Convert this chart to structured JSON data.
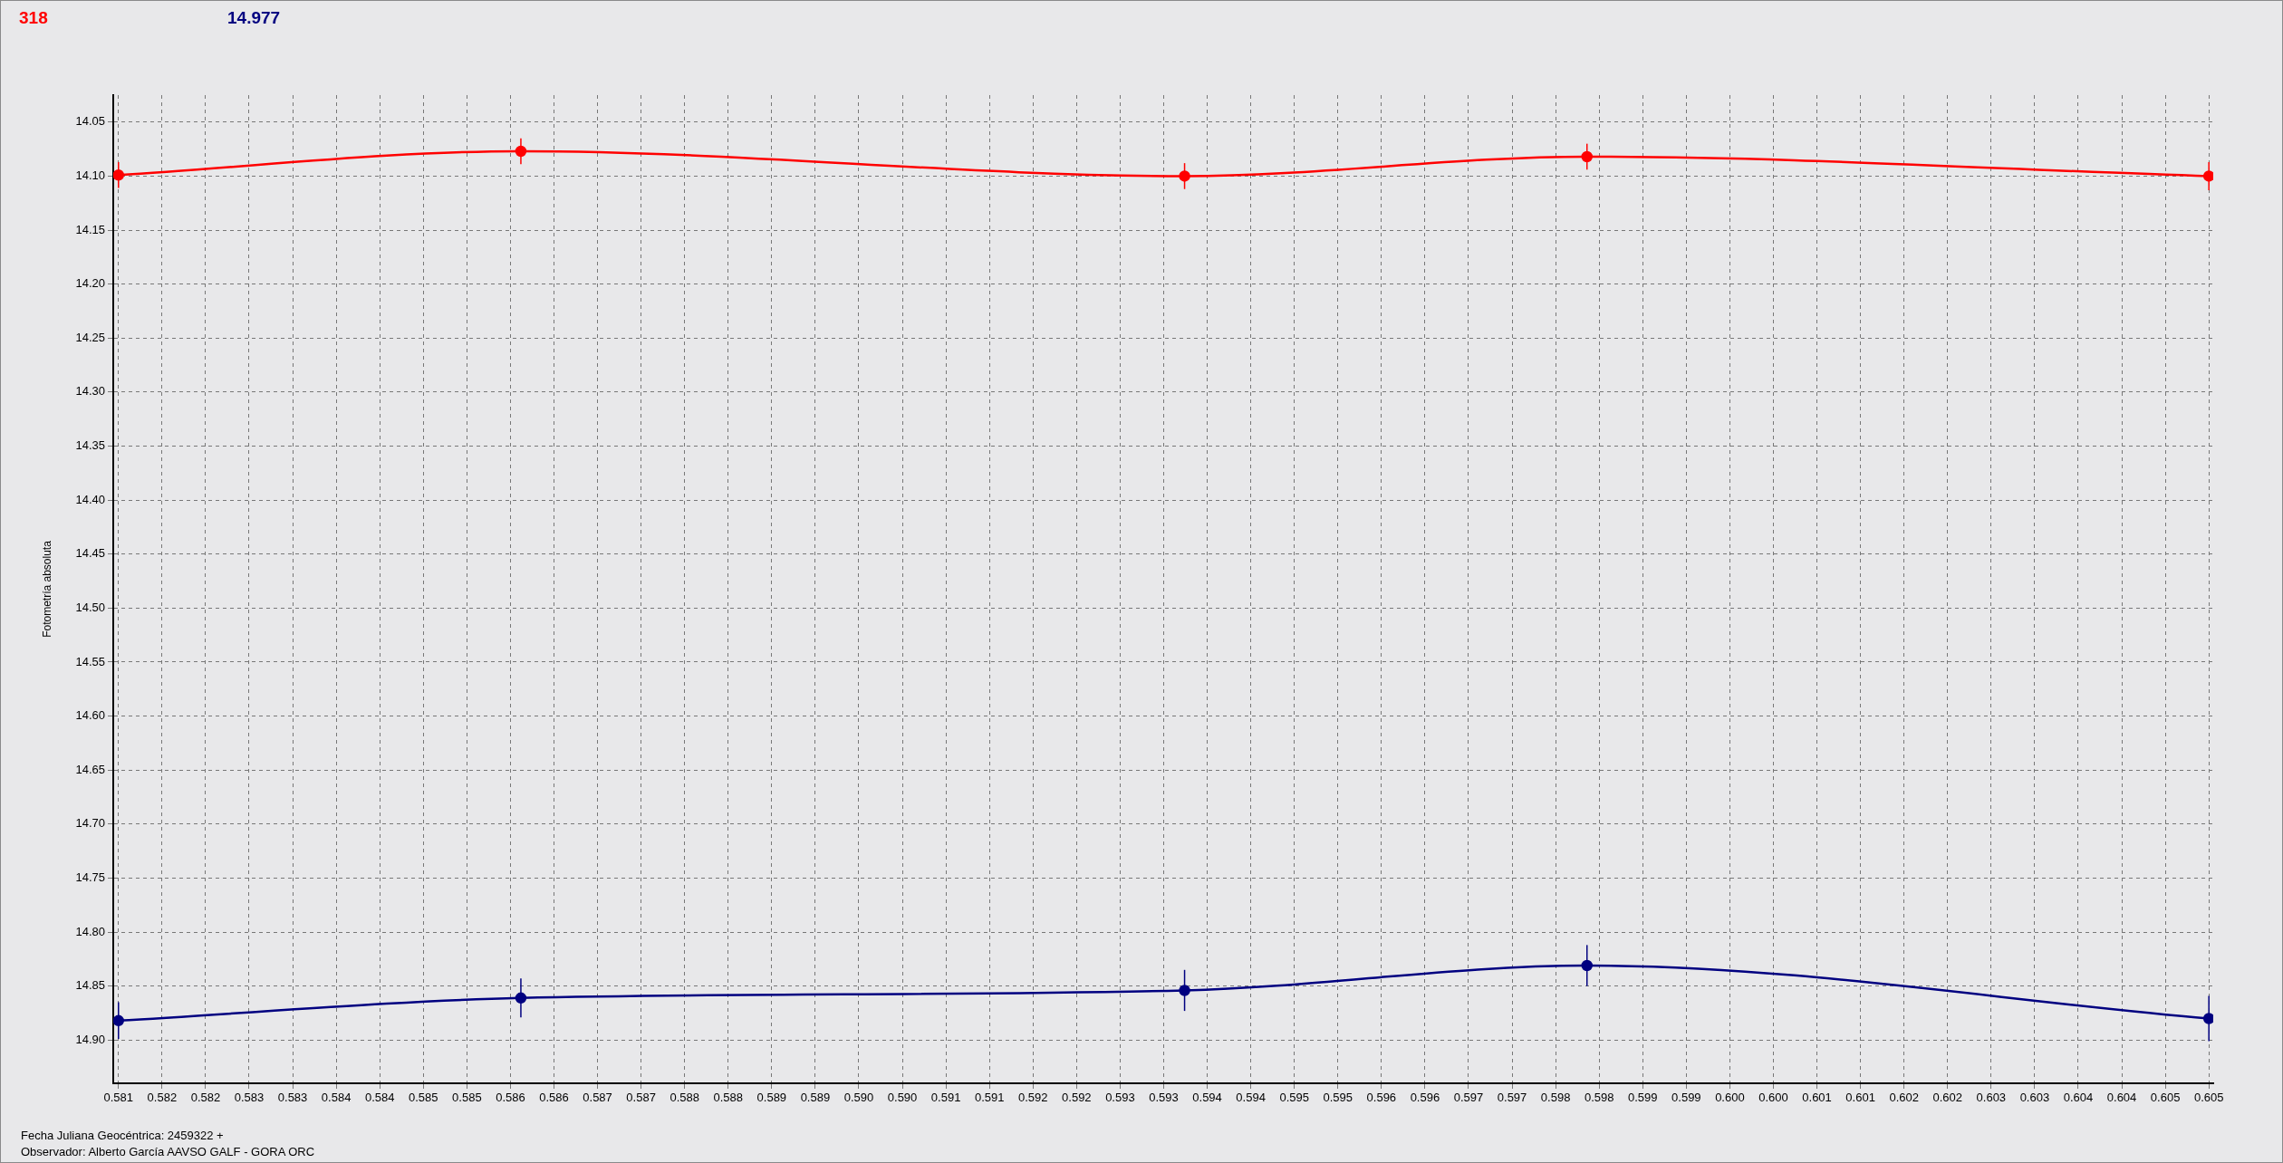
{
  "chart_data": {
    "type": "line",
    "ylabel": "Fotometría absoluta",
    "xlabel": "Fecha Juliana Geocéntrica: 2459322 +",
    "annotations": [
      "Observador: Alberto García AAVSO GALF - GORA ORC"
    ],
    "legend": "top left",
    "grid": true,
    "marker": "circle",
    "line_style": "solid",
    "x": [
      0.581,
      0.58562,
      0.59324,
      0.59786,
      0.605
    ],
    "series": [
      {
        "name": "318",
        "color": "#ff0000",
        "values": [
          14.099,
          14.077,
          14.1,
          14.082,
          14.1
        ],
        "errors": [
          0.012,
          0.012,
          0.012,
          0.012,
          0.013
        ]
      },
      {
        "name": "14.977",
        "color": "#000080",
        "values": [
          14.882,
          14.861,
          14.854,
          14.831,
          14.88
        ],
        "errors": [
          0.017,
          0.018,
          0.019,
          0.019,
          0.021
        ]
      }
    ],
    "xlim": [
      0.58094,
      0.60505
    ],
    "xticks": [
      {
        "value": 0.581,
        "label": "0.581"
      },
      {
        "value": 0.5815,
        "label": "0.582"
      },
      {
        "value": 0.582,
        "label": "0.582"
      },
      {
        "value": 0.5825,
        "label": "0.583"
      },
      {
        "value": 0.583,
        "label": "0.583"
      },
      {
        "value": 0.5835,
        "label": "0.584"
      },
      {
        "value": 0.584,
        "label": "0.584"
      },
      {
        "value": 0.5845,
        "label": "0.585"
      },
      {
        "value": 0.585,
        "label": "0.585"
      },
      {
        "value": 0.5855,
        "label": "0.586"
      },
      {
        "value": 0.586,
        "label": "0.586"
      },
      {
        "value": 0.5865,
        "label": "0.587"
      },
      {
        "value": 0.587,
        "label": "0.587"
      },
      {
        "value": 0.5875,
        "label": "0.588"
      },
      {
        "value": 0.588,
        "label": "0.588"
      },
      {
        "value": 0.5885,
        "label": "0.589"
      },
      {
        "value": 0.589,
        "label": "0.589"
      },
      {
        "value": 0.5895,
        "label": "0.590"
      },
      {
        "value": 0.59,
        "label": "0.590"
      },
      {
        "value": 0.5905,
        "label": "0.591"
      },
      {
        "value": 0.591,
        "label": "0.591"
      },
      {
        "value": 0.5915,
        "label": "0.592"
      },
      {
        "value": 0.592,
        "label": "0.592"
      },
      {
        "value": 0.5925,
        "label": "0.593"
      },
      {
        "value": 0.593,
        "label": "0.593"
      },
      {
        "value": 0.5935,
        "label": "0.594"
      },
      {
        "value": 0.594,
        "label": "0.594"
      },
      {
        "value": 0.5945,
        "label": "0.595"
      },
      {
        "value": 0.595,
        "label": "0.595"
      },
      {
        "value": 0.5955,
        "label": "0.596"
      },
      {
        "value": 0.596,
        "label": "0.596"
      },
      {
        "value": 0.5965,
        "label": "0.597"
      },
      {
        "value": 0.597,
        "label": "0.597"
      },
      {
        "value": 0.5975,
        "label": "0.598"
      },
      {
        "value": 0.598,
        "label": "0.598"
      },
      {
        "value": 0.5985,
        "label": "0.599"
      },
      {
        "value": 0.599,
        "label": "0.599"
      },
      {
        "value": 0.5995,
        "label": "0.600"
      },
      {
        "value": 0.6,
        "label": "0.600"
      },
      {
        "value": 0.6005,
        "label": "0.601"
      },
      {
        "value": 0.601,
        "label": "0.601"
      },
      {
        "value": 0.6015,
        "label": "0.602"
      },
      {
        "value": 0.602,
        "label": "0.602"
      },
      {
        "value": 0.6025,
        "label": "0.603"
      },
      {
        "value": 0.603,
        "label": "0.603"
      },
      {
        "value": 0.6035,
        "label": "0.604"
      },
      {
        "value": 0.604,
        "label": "0.604"
      },
      {
        "value": 0.6045,
        "label": "0.605"
      },
      {
        "value": 0.605,
        "label": "0.605"
      }
    ],
    "ylim": [
      14.94,
      14.025
    ],
    "yticks": [
      {
        "value": 14.05,
        "label": "14.05"
      },
      {
        "value": 14.1,
        "label": "14.10"
      },
      {
        "value": 14.15,
        "label": "14.15"
      },
      {
        "value": 14.2,
        "label": "14.20"
      },
      {
        "value": 14.25,
        "label": "14.25"
      },
      {
        "value": 14.3,
        "label": "14.30"
      },
      {
        "value": 14.35,
        "label": "14.35"
      },
      {
        "value": 14.4,
        "label": "14.40"
      },
      {
        "value": 14.45,
        "label": "14.45"
      },
      {
        "value": 14.5,
        "label": "14.50"
      },
      {
        "value": 14.55,
        "label": "14.55"
      },
      {
        "value": 14.6,
        "label": "14.60"
      },
      {
        "value": 14.65,
        "label": "14.65"
      },
      {
        "value": 14.7,
        "label": "14.70"
      },
      {
        "value": 14.75,
        "label": "14.75"
      },
      {
        "value": 14.8,
        "label": "14.80"
      },
      {
        "value": 14.85,
        "label": "14.85"
      },
      {
        "value": 14.9,
        "label": "14.90"
      }
    ]
  }
}
